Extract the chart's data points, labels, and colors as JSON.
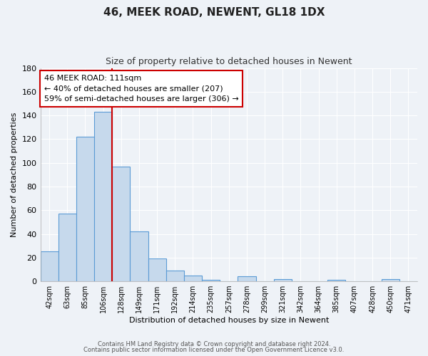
{
  "title": "46, MEEK ROAD, NEWENT, GL18 1DX",
  "subtitle": "Size of property relative to detached houses in Newent",
  "xlabel": "Distribution of detached houses by size in Newent",
  "ylabel": "Number of detached properties",
  "bar_labels": [
    "42sqm",
    "63sqm",
    "85sqm",
    "106sqm",
    "128sqm",
    "149sqm",
    "171sqm",
    "192sqm",
    "214sqm",
    "235sqm",
    "257sqm",
    "278sqm",
    "299sqm",
    "321sqm",
    "342sqm",
    "364sqm",
    "385sqm",
    "407sqm",
    "428sqm",
    "450sqm",
    "471sqm"
  ],
  "bar_values": [
    25,
    57,
    122,
    143,
    97,
    42,
    19,
    9,
    5,
    1,
    0,
    4,
    0,
    2,
    0,
    0,
    1,
    0,
    0,
    2,
    0
  ],
  "bar_color": "#c6d9ec",
  "bar_edge_color": "#5b9bd5",
  "vline_x": 3.5,
  "vline_color": "#cc0000",
  "annotation_text": "46 MEEK ROAD: 111sqm\n← 40% of detached houses are smaller (207)\n59% of semi-detached houses are larger (306) →",
  "annotation_box_edge_color": "#cc0000",
  "annotation_box_face_color": "#ffffff",
  "ylim": [
    0,
    180
  ],
  "yticks": [
    0,
    20,
    40,
    60,
    80,
    100,
    120,
    140,
    160,
    180
  ],
  "footer1": "Contains HM Land Registry data © Crown copyright and database right 2024.",
  "footer2": "Contains public sector information licensed under the Open Government Licence v3.0.",
  "bg_color": "#eef2f7",
  "grid_color": "#ffffff",
  "title_fontsize": 11,
  "subtitle_fontsize": 9,
  "tick_fontsize": 7,
  "ylabel_fontsize": 8,
  "xlabel_fontsize": 8,
  "annotation_fontsize": 8,
  "footer_fontsize": 6
}
